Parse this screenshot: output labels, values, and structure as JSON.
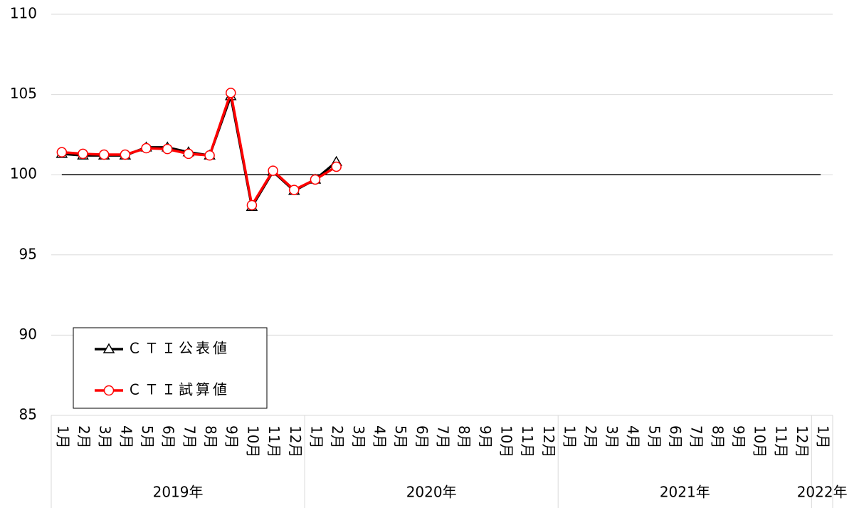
{
  "chart_data": {
    "type": "line",
    "categories": [
      "1月",
      "2月",
      "3月",
      "4月",
      "5月",
      "6月",
      "7月",
      "8月",
      "9月",
      "10月",
      "11月",
      "12月",
      "1月",
      "2月",
      "3月",
      "4月",
      "5月",
      "6月",
      "7月",
      "8月",
      "9月",
      "10月",
      "11月",
      "12月",
      "1月",
      "2月",
      "3月",
      "4月",
      "5月",
      "6月",
      "7月",
      "8月",
      "9月",
      "10月",
      "11月",
      "12月",
      "1月"
    ],
    "year_groups": [
      {
        "label": "2019年",
        "span": 12
      },
      {
        "label": "2020年",
        "span": 12
      },
      {
        "label": "2021年",
        "span": 12
      },
      {
        "label": "2022年",
        "span": 1
      }
    ],
    "series": [
      {
        "name": "ＣＴＩ公表値",
        "color": "#000000",
        "marker": "triangle",
        "values": [
          101.3,
          101.2,
          101.2,
          101.2,
          101.7,
          101.7,
          101.4,
          101.2,
          104.9,
          98.0,
          100.2,
          99.0,
          99.7,
          100.8,
          null,
          null,
          null,
          null,
          null,
          null,
          null,
          null,
          null,
          null,
          null,
          null,
          null,
          null,
          null,
          null,
          null,
          null,
          null,
          null,
          null,
          null,
          null
        ]
      },
      {
        "name": "ＣＴＩ試算値",
        "color": "#ff0000",
        "marker": "circle",
        "values": [
          101.4,
          101.3,
          101.25,
          101.25,
          101.65,
          101.6,
          101.3,
          101.2,
          105.1,
          98.1,
          100.25,
          99.05,
          99.7,
          100.5,
          null,
          null,
          null,
          null,
          null,
          null,
          null,
          null,
          null,
          null,
          null,
          null,
          null,
          null,
          null,
          null,
          null,
          null,
          null,
          null,
          null,
          null,
          null
        ]
      }
    ],
    "reference_line": 100,
    "ylim": [
      85,
      110
    ],
    "yticks": [
      85,
      90,
      95,
      100,
      105,
      110
    ],
    "grid": true,
    "legend": "lower left"
  }
}
